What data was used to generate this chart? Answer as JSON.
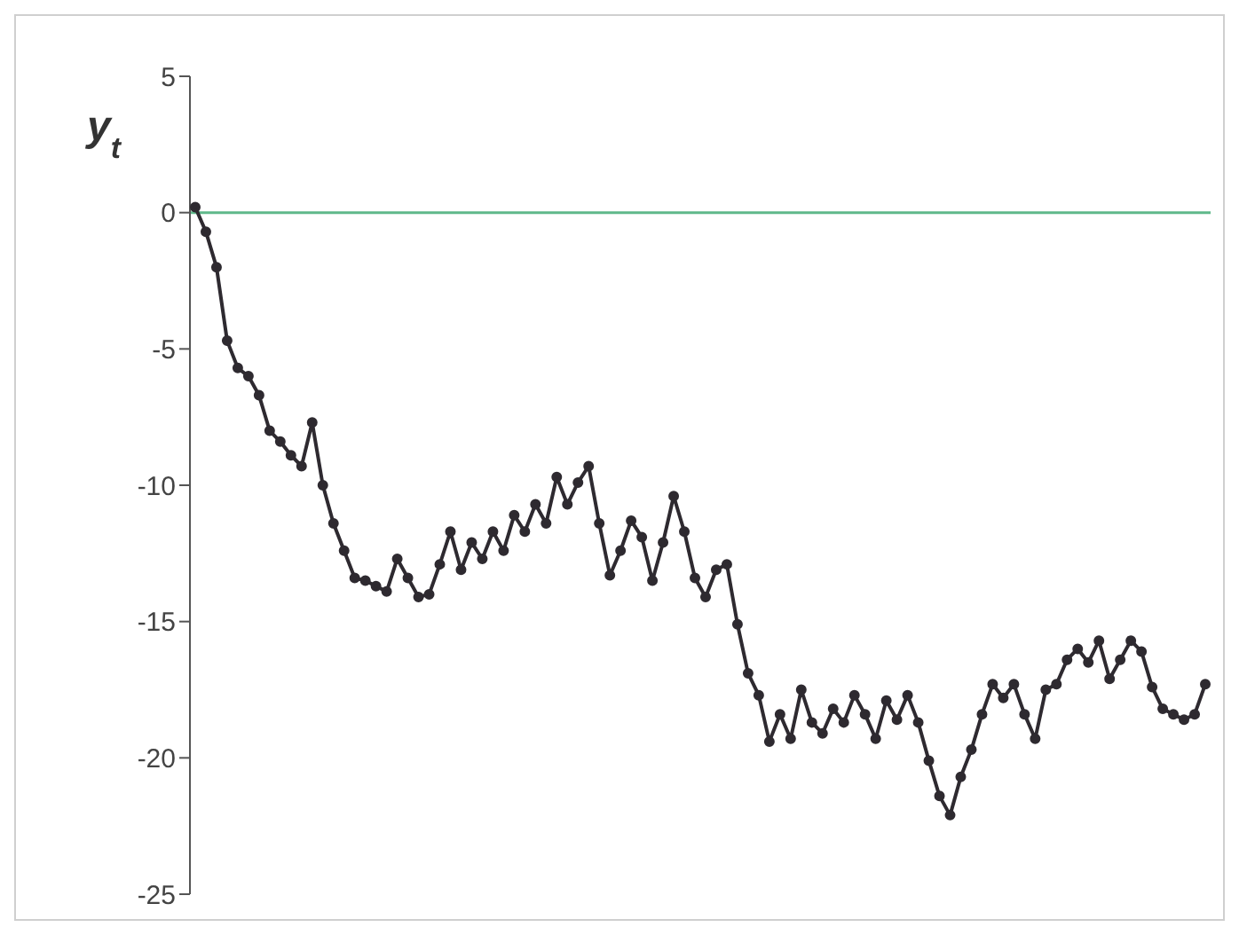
{
  "chart_data": {
    "type": "line",
    "ylabel": "y$_{t}$",
    "categories": [
      null,
      null,
      null,
      null,
      null,
      null,
      null,
      null,
      null,
      null,
      null,
      null,
      null,
      null,
      null,
      null,
      null,
      null,
      null,
      null,
      null,
      null,
      null,
      null,
      null,
      null,
      null,
      null,
      null,
      null,
      null,
      null,
      null,
      null,
      null,
      null,
      null,
      null,
      null,
      null,
      null,
      null,
      null,
      null,
      null,
      null,
      null,
      null,
      null,
      null,
      null,
      null,
      null,
      null,
      null,
      null,
      null,
      null,
      null,
      null,
      null,
      null,
      null,
      null,
      null,
      null,
      null,
      null,
      null,
      null,
      null,
      null,
      null,
      null,
      null,
      null,
      null,
      null,
      null,
      null,
      null,
      null,
      null,
      null,
      null,
      null,
      null,
      null,
      null,
      null,
      null,
      null,
      null,
      null,
      null,
      null
    ],
    "series": [
      {
        "color": "#2e2a30",
        "values": [
          0.2,
          -0.7,
          -2,
          -4.7,
          -5.7,
          -6,
          -6.7,
          -8,
          -8.4,
          -8.9,
          -9.3,
          -7.7,
          -10,
          -11.4,
          -12.4,
          -13.4,
          -13.5,
          -13.7,
          -13.9,
          -12.7,
          -13.4,
          -14.1,
          -14,
          -12.9,
          -11.7,
          -13.1,
          -12.1,
          -12.7,
          -11.7,
          -12.4,
          -11.1,
          -11.7,
          -10.7,
          -11.4,
          -9.7,
          -10.7,
          -9.9,
          -9.3,
          -11.4,
          -13.3,
          -12.4,
          -11.3,
          -11.9,
          -13.5,
          -12.1,
          -10.4,
          -11.7,
          -13.4,
          -14.1,
          -13.1,
          -12.9,
          -15.1,
          -16.9,
          -17.7,
          -19.4,
          -18.4,
          -19.3,
          -17.5,
          -18.7,
          -19.1,
          -18.2,
          -18.7,
          -17.7,
          -18.4,
          -19.3,
          -17.9,
          -18.6,
          -17.7,
          -18.7,
          -20.1,
          -21.4,
          -22.1,
          -20.7,
          -19.7,
          -18.4,
          -17.3,
          -17.8,
          -17.3,
          -18.4,
          -19.3,
          -17.5,
          -17.3,
          -16.4,
          -16,
          -16.5,
          -15.7,
          -17.1,
          -16.4,
          -15.7,
          -16.1,
          -17.4,
          -18.2,
          -18.4,
          -18.6,
          -18.4,
          -17.3
        ]
      }
    ],
    "ylim": [
      -25,
      5
    ],
    "yticks": [
      -25,
      -20,
      -15,
      -10,
      -5,
      0,
      5
    ],
    "ref_lines": [
      {
        "axis": "y",
        "value": 0,
        "color": "#5fb88a"
      }
    ],
    "marker": "circle",
    "line_style": "solid",
    "grid": false,
    "legend": false,
    "tick_labels": "y"
  }
}
